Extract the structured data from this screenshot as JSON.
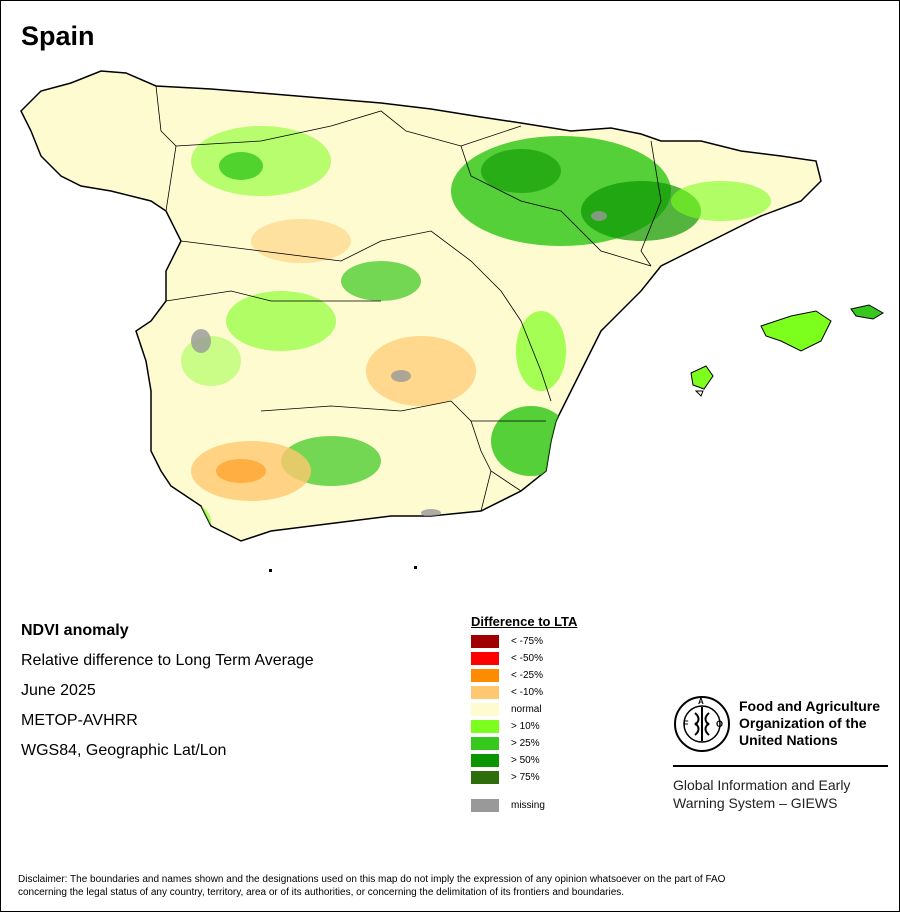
{
  "title": "Spain",
  "info_lines": [
    "NDVI anomaly",
    "Relative difference to Long Term Average",
    "June 2025",
    "METOP-AVHRR",
    "WGS84, Geographic Lat/Lon"
  ],
  "legend": {
    "title": "Difference to LTA",
    "items": [
      {
        "label": "< -75%",
        "color": "#a00000"
      },
      {
        "label": "< -50%",
        "color": "#ff0000"
      },
      {
        "label": "< -25%",
        "color": "#ff8c00"
      },
      {
        "label": "< -10%",
        "color": "#ffc870"
      },
      {
        "label": "normal",
        "color": "#fdfbcf"
      },
      {
        "label": "> 10%",
        "color": "#7dff1e"
      },
      {
        "label": "> 25%",
        "color": "#37c81e"
      },
      {
        "label": "> 50%",
        "color": "#0a9600"
      },
      {
        "label": "> 75%",
        "color": "#2d6e0a"
      },
      {
        "label": "missing",
        "color": "#999999"
      }
    ]
  },
  "fao": {
    "logo_icon": "fao-emblem-icon",
    "name_lines": [
      "Food and Agriculture",
      "Organization of the",
      "United Nations"
    ],
    "giews_lines": [
      "Global Information and Early",
      "Warning System – GIEWS"
    ]
  },
  "disclaimer_lines": [
    "Disclaimer: The boundaries and names shown and the designations used on this map do not imply the expression of any opinion whatsoever on the part of FAO",
    "concerning the legal status of any country, territory, area or of its authorities, or concerning the delimitation of its frontiers and boundaries."
  ]
}
